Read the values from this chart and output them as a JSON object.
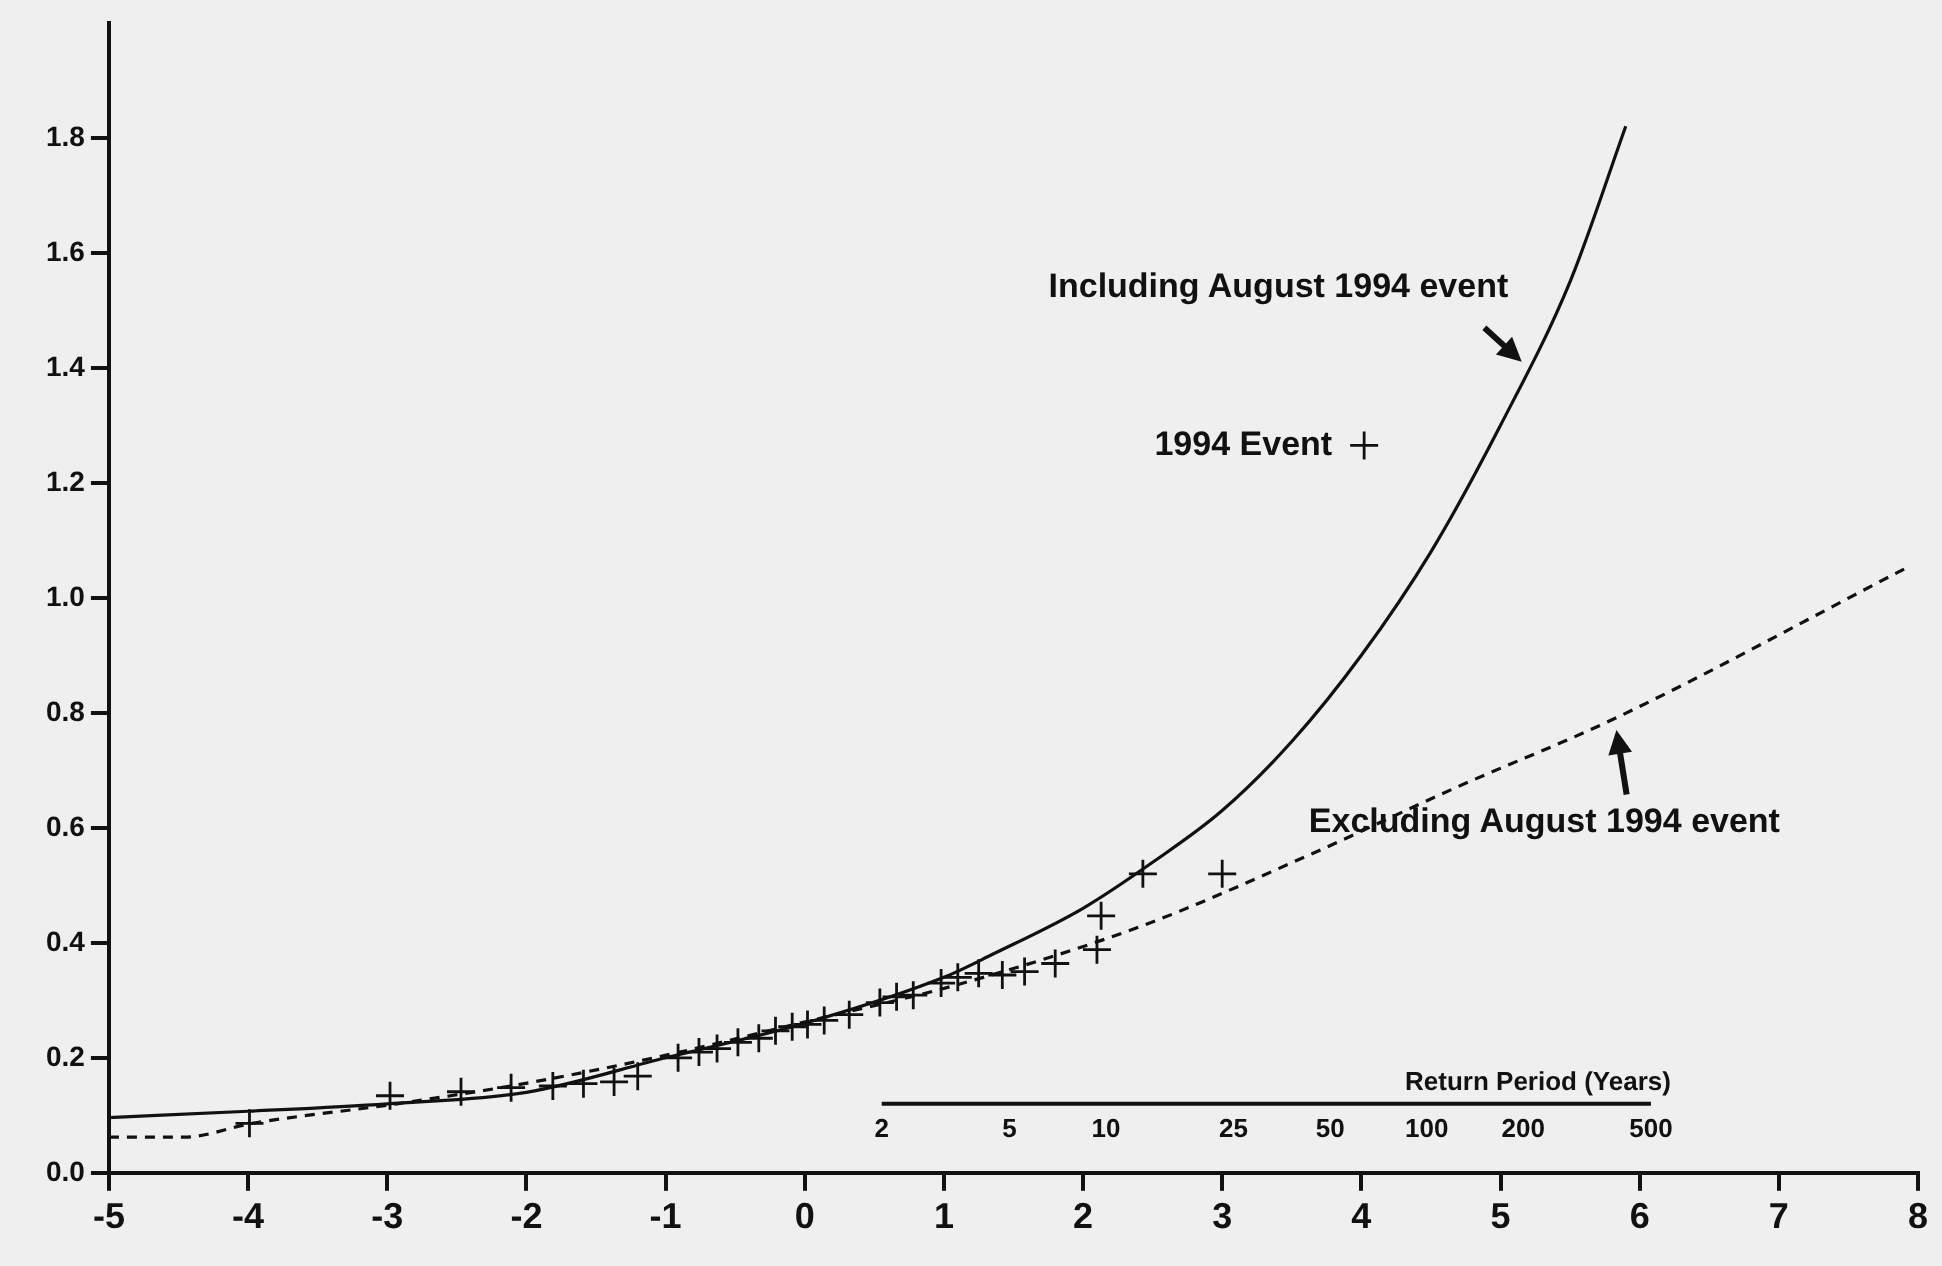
{
  "chart_data": {
    "type": "line",
    "xlim": [
      -5,
      8
    ],
    "xticks": [
      -5,
      -4,
      -3,
      -2,
      -1,
      0,
      1,
      2,
      3,
      4,
      5,
      6,
      7,
      8
    ],
    "ylim": [
      0,
      2.0
    ],
    "yticks": [
      {
        "value": 0,
        "label": "0.0"
      },
      0.2,
      0.4,
      0.6,
      0.8,
      {
        "value": 1,
        "label": "1.0"
      },
      1.2,
      1.4,
      1.6,
      1.8
    ],
    "x2lim": [
      0.0078,
      3400
    ],
    "x2label": "Return Period (Years)",
    "log": "x2",
    "x2ticks": [
      2,
      5,
      10,
      25,
      50,
      100,
      200,
      500
    ],
    "grid": false,
    "series": [
      {
        "type": "line",
        "color": "#111111",
        "line_style": "solid",
        "x": [
          -5,
          -4,
          -3,
          -2,
          -1,
          0,
          1,
          1.35,
          2,
          2.5,
          3,
          3.5,
          4,
          4.5,
          5,
          5.5,
          5.9
        ],
        "values": [
          0.096,
          0.107,
          0.12,
          0.14,
          0.2,
          0.26,
          0.34,
          0.38,
          0.46,
          0.54,
          0.63,
          0.75,
          0.9,
          1.08,
          1.3,
          1.55,
          1.82
        ]
      },
      {
        "type": "line",
        "color": "#111111",
        "line_style": "dashed",
        "x": [
          -5,
          -4.46,
          -3.97,
          -2.93,
          -1.95,
          -0.97,
          -0.04,
          1.14,
          2.43,
          3.6,
          4.68,
          5.82,
          7.9
        ],
        "values": [
          0.062,
          0.062,
          0.086,
          0.12,
          0.158,
          0.206,
          0.26,
          0.33,
          0.43,
          0.55,
          0.67,
          0.79,
          1.05
        ]
      },
      {
        "type": "scatter",
        "color": "#111111",
        "marker": "cross",
        "x": [
          -3.99,
          -2.98,
          -2.47,
          -2.11,
          -1.81,
          -1.59,
          -1.37,
          -1.2,
          -0.91,
          -0.76,
          -0.63,
          -0.48,
          -0.33,
          -0.21,
          -0.09,
          0.02,
          0.14,
          0.32,
          0.54,
          0.66,
          0.78,
          0.98,
          1.1,
          1.25,
          1.42,
          1.58,
          1.8,
          2.1,
          2.13,
          2.43,
          3.0,
          4.02
        ],
        "values": [
          0.086,
          0.134,
          0.141,
          0.148,
          0.151,
          0.155,
          0.158,
          0.168,
          0.2,
          0.21,
          0.216,
          0.227,
          0.234,
          0.247,
          0.254,
          0.258,
          0.265,
          0.275,
          0.296,
          0.306,
          0.309,
          0.33,
          0.34,
          0.347,
          0.344,
          0.35,
          0.364,
          0.388,
          0.447,
          0.52,
          0.52,
          1.265
        ]
      }
    ],
    "annotations": [
      {
        "text": "Including August 1994 event",
        "x": 5.2,
        "y": 1.4
      },
      {
        "text": "Excluding August 1994 event",
        "x": 5.82,
        "y": 0.79
      },
      {
        "text": "1994 Event",
        "x": 4.02,
        "y": 1.265
      }
    ]
  }
}
